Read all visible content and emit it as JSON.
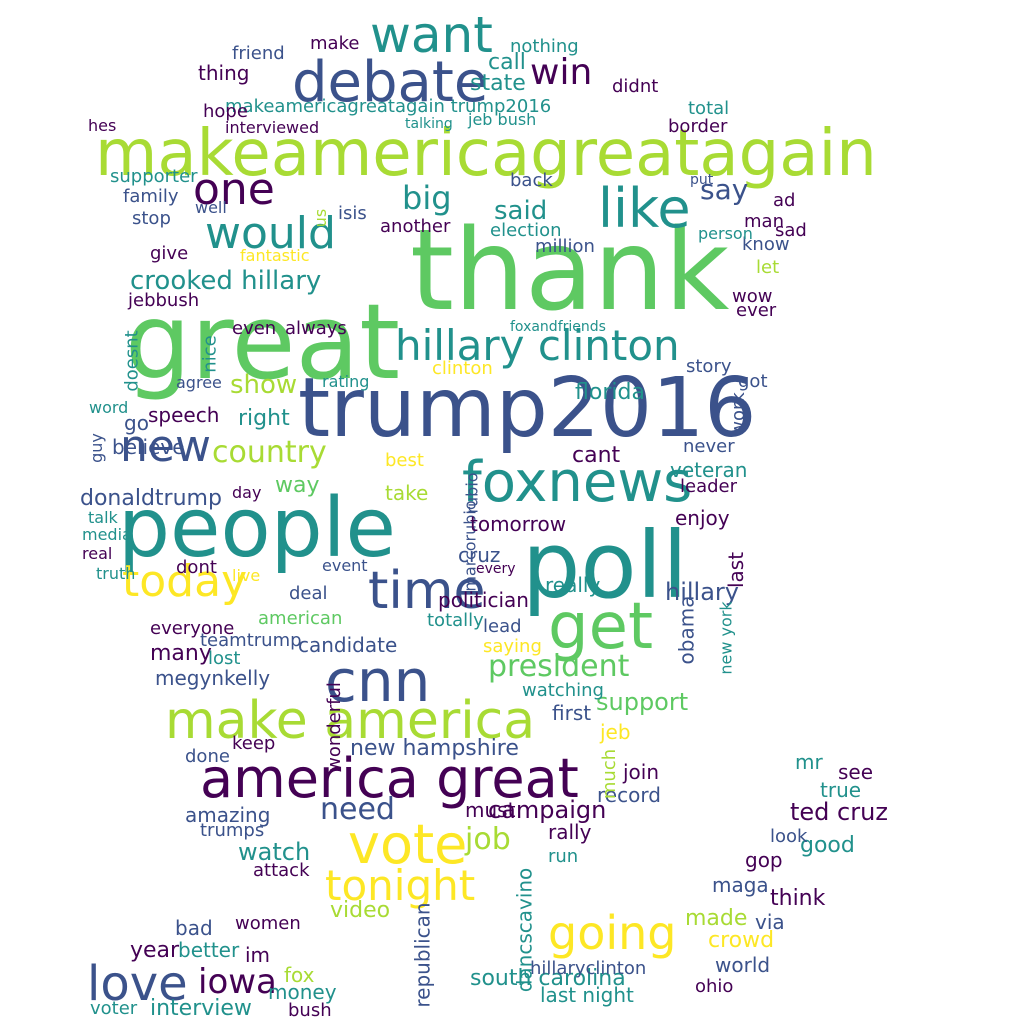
{
  "palette": {
    "dark_purple": "#440154",
    "indigo": "#3b528b",
    "teal": "#21918c",
    "green": "#5ec962",
    "yellow_green": "#a8db34",
    "yellow": "#fde725"
  },
  "words": [
    {
      "text": "thank",
      "color": "#5ec962"
    },
    {
      "text": "great",
      "color": "#5ec962"
    },
    {
      "text": "trump2016",
      "color": "#3b528b"
    },
    {
      "text": "people",
      "color": "#21918c"
    },
    {
      "text": "poll",
      "color": "#21918c"
    },
    {
      "text": "makeamericagreatagain",
      "color": "#a8db34"
    },
    {
      "text": "america great",
      "color": "#440154"
    },
    {
      "text": "make america",
      "color": "#a8db34"
    },
    {
      "text": "debate",
      "color": "#3b528b"
    },
    {
      "text": "foxnews",
      "color": "#21918c"
    },
    {
      "text": "hillary clinton",
      "color": "#21918c"
    },
    {
      "text": "cnn",
      "color": "#3b528b"
    },
    {
      "text": "time",
      "color": "#3b528b"
    },
    {
      "text": "get",
      "color": "#5ec962"
    },
    {
      "text": "vote",
      "color": "#fde725"
    },
    {
      "text": "want",
      "color": "#21918c"
    },
    {
      "text": "one",
      "color": "#440154"
    },
    {
      "text": "like",
      "color": "#21918c"
    },
    {
      "text": "would",
      "color": "#21918c"
    },
    {
      "text": "new",
      "color": "#3b528b"
    },
    {
      "text": "today",
      "color": "#fde725"
    },
    {
      "text": "love",
      "color": "#3b528b"
    },
    {
      "text": "tonight",
      "color": "#fde725"
    },
    {
      "text": "going",
      "color": "#fde725"
    },
    {
      "text": "win",
      "color": "#440154"
    },
    {
      "text": "country",
      "color": "#a8db34"
    },
    {
      "text": "crooked hillary",
      "color": "#21918c"
    },
    {
      "text": "president",
      "color": "#5ec962"
    },
    {
      "text": "iowa",
      "color": "#440154"
    },
    {
      "text": "job",
      "color": "#a8db34"
    },
    {
      "text": "need",
      "color": "#3b528b"
    },
    {
      "text": "big",
      "color": "#21918c"
    },
    {
      "text": "said",
      "color": "#21918c"
    },
    {
      "text": "say",
      "color": "#3b528b"
    },
    {
      "text": "show",
      "color": "#a8db34"
    },
    {
      "text": "makeamericagreatagain trump2016",
      "color": "#21918c"
    },
    {
      "text": "interview",
      "color": "#21918c"
    },
    {
      "text": "campaign",
      "color": "#440154"
    },
    {
      "text": "hillary",
      "color": "#3b528b"
    },
    {
      "text": "ted cruz",
      "color": "#440154"
    },
    {
      "text": "donaldtrump",
      "color": "#3b528b"
    },
    {
      "text": "new hampshire",
      "color": "#3b528b"
    },
    {
      "text": "speech",
      "color": "#440154"
    },
    {
      "text": "south carolina",
      "color": "#21918c"
    },
    {
      "text": "last night",
      "color": "#21918c"
    },
    {
      "text": "hillaryclinton",
      "color": "#3b528b"
    },
    {
      "text": "megynkelly",
      "color": "#3b528b"
    },
    {
      "text": "wonderful",
      "color": "#440154"
    },
    {
      "text": "support",
      "color": "#5ec962"
    },
    {
      "text": "watch",
      "color": "#21918c"
    },
    {
      "text": "florida",
      "color": "#21918c"
    },
    {
      "text": "money",
      "color": "#21918c"
    },
    {
      "text": "dancscavino",
      "color": "#21918c"
    },
    {
      "text": "republican",
      "color": "#3b528b"
    },
    {
      "text": "video",
      "color": "#a8db34"
    },
    {
      "text": "crowd",
      "color": "#fde725"
    },
    {
      "text": "made",
      "color": "#a8db34"
    },
    {
      "text": "world",
      "color": "#3b528b"
    },
    {
      "text": "think",
      "color": "#440154"
    },
    {
      "text": "gop",
      "color": "#440154"
    },
    {
      "text": "good",
      "color": "#21918c"
    },
    {
      "text": "look",
      "color": "#3b528b"
    },
    {
      "text": "year",
      "color": "#440154"
    },
    {
      "text": "bad",
      "color": "#3b528b"
    },
    {
      "text": "better",
      "color": "#21918c"
    },
    {
      "text": "im",
      "color": "#440154"
    },
    {
      "text": "fox",
      "color": "#a8db34"
    },
    {
      "text": "women",
      "color": "#440154"
    },
    {
      "text": "amazing",
      "color": "#3b528b"
    },
    {
      "text": "trumps",
      "color": "#3b528b"
    },
    {
      "text": "keep",
      "color": "#440154"
    },
    {
      "text": "done",
      "color": "#3b528b"
    },
    {
      "text": "attack",
      "color": "#440154"
    },
    {
      "text": "teamtrump",
      "color": "#3b528b"
    },
    {
      "text": "everyone",
      "color": "#440154"
    },
    {
      "text": "many",
      "color": "#440154"
    },
    {
      "text": "lost",
      "color": "#21918c"
    },
    {
      "text": "candidate",
      "color": "#3b528b"
    },
    {
      "text": "american",
      "color": "#5ec962"
    },
    {
      "text": "deal",
      "color": "#3b528b"
    },
    {
      "text": "totally",
      "color": "#21918c"
    },
    {
      "text": "politician",
      "color": "#440154"
    },
    {
      "text": "really",
      "color": "#21918c"
    },
    {
      "text": "cruz",
      "color": "#3b528b"
    },
    {
      "text": "rubio",
      "color": "#3b528b"
    },
    {
      "text": "marcorubio",
      "color": "#3b528b"
    },
    {
      "text": "tomorrow",
      "color": "#440154"
    },
    {
      "text": "believe",
      "color": "#3b528b"
    },
    {
      "text": "right",
      "color": "#21918c"
    },
    {
      "text": "way",
      "color": "#5ec962"
    },
    {
      "text": "take",
      "color": "#a8db34"
    },
    {
      "text": "cant",
      "color": "#440154"
    },
    {
      "text": "veteran",
      "color": "#21918c"
    },
    {
      "text": "leader",
      "color": "#440154"
    },
    {
      "text": "enjoy",
      "color": "#440154"
    },
    {
      "text": "last",
      "color": "#440154"
    },
    {
      "text": "obama",
      "color": "#3b528b"
    },
    {
      "text": "new york",
      "color": "#21918c"
    },
    {
      "text": "join",
      "color": "#440154"
    },
    {
      "text": "record",
      "color": "#3b528b"
    },
    {
      "text": "much",
      "color": "#a8db34"
    },
    {
      "text": "jeb",
      "color": "#fde725"
    },
    {
      "text": "mr",
      "color": "#21918c"
    },
    {
      "text": "see",
      "color": "#440154"
    },
    {
      "text": "true",
      "color": "#21918c"
    },
    {
      "text": "first",
      "color": "#3b528b"
    },
    {
      "text": "watching",
      "color": "#21918c"
    },
    {
      "text": "saying",
      "color": "#fde725"
    },
    {
      "text": "lead",
      "color": "#3b528b"
    },
    {
      "text": "must",
      "color": "#440154"
    },
    {
      "text": "rally",
      "color": "#440154"
    },
    {
      "text": "run",
      "color": "#21918c"
    },
    {
      "text": "maga",
      "color": "#3b528b"
    },
    {
      "text": "via",
      "color": "#3b528b"
    },
    {
      "text": "ohio",
      "color": "#440154"
    },
    {
      "text": "bush",
      "color": "#440154"
    },
    {
      "text": "voter",
      "color": "#21918c"
    },
    {
      "text": "jebbush",
      "color": "#440154"
    },
    {
      "text": "hope",
      "color": "#440154"
    },
    {
      "text": "family",
      "color": "#3b528b"
    },
    {
      "text": "stop",
      "color": "#3b528b"
    },
    {
      "text": "well",
      "color": "#3b528b"
    },
    {
      "text": "give",
      "color": "#440154"
    },
    {
      "text": "thing",
      "color": "#440154"
    },
    {
      "text": "friend",
      "color": "#3b528b"
    },
    {
      "text": "make",
      "color": "#440154"
    },
    {
      "text": "nothing",
      "color": "#21918c"
    },
    {
      "text": "call",
      "color": "#21918c"
    },
    {
      "text": "state",
      "color": "#21918c"
    },
    {
      "text": "didnt",
      "color": "#440154"
    },
    {
      "text": "total",
      "color": "#21918c"
    },
    {
      "text": "border",
      "color": "#440154"
    },
    {
      "text": "interviewed",
      "color": "#440154"
    },
    {
      "text": "jeb bush",
      "color": "#21918c"
    },
    {
      "text": "talking",
      "color": "#21918c"
    },
    {
      "text": "supporter",
      "color": "#21918c"
    },
    {
      "text": "back",
      "color": "#3b528b"
    },
    {
      "text": "isis",
      "color": "#3b528b"
    },
    {
      "text": "us",
      "color": "#a8db34"
    },
    {
      "text": "another",
      "color": "#440154"
    },
    {
      "text": "election",
      "color": "#21918c"
    },
    {
      "text": "million",
      "color": "#3b528b"
    },
    {
      "text": "fantastic",
      "color": "#fde725"
    },
    {
      "text": "always",
      "color": "#440154"
    },
    {
      "text": "even",
      "color": "#440154"
    },
    {
      "text": "nice",
      "color": "#21918c"
    },
    {
      "text": "doesnt",
      "color": "#21918c"
    },
    {
      "text": "agree",
      "color": "#3b528b"
    },
    {
      "text": "rating",
      "color": "#21918c"
    },
    {
      "text": "clinton",
      "color": "#fde725"
    },
    {
      "text": "foxandfriends",
      "color": "#21918c"
    },
    {
      "text": "story",
      "color": "#3b528b"
    },
    {
      "text": "got",
      "color": "#3b528b"
    },
    {
      "text": "wow",
      "color": "#440154"
    },
    {
      "text": "ever",
      "color": "#440154"
    },
    {
      "text": "work",
      "color": "#3b528b"
    },
    {
      "text": "know",
      "color": "#3b528b"
    },
    {
      "text": "let",
      "color": "#a8db34"
    },
    {
      "text": "person",
      "color": "#21918c"
    },
    {
      "text": "man",
      "color": "#440154"
    },
    {
      "text": "sad",
      "color": "#440154"
    },
    {
      "text": "ad",
      "color": "#440154"
    },
    {
      "text": "put",
      "color": "#3b528b"
    },
    {
      "text": "never",
      "color": "#3b528b"
    },
    {
      "text": "best",
      "color": "#fde725"
    },
    {
      "text": "go",
      "color": "#3b528b"
    },
    {
      "text": "word",
      "color": "#21918c"
    },
    {
      "text": "day",
      "color": "#440154"
    },
    {
      "text": "guy",
      "color": "#3b528b"
    },
    {
      "text": "talk",
      "color": "#21918c"
    },
    {
      "text": "media",
      "color": "#21918c"
    },
    {
      "text": "real",
      "color": "#440154"
    },
    {
      "text": "truth",
      "color": "#21918c"
    },
    {
      "text": "dont",
      "color": "#440154"
    },
    {
      "text": "live",
      "color": "#fde725"
    },
    {
      "text": "event",
      "color": "#3b528b"
    },
    {
      "text": "every",
      "color": "#440154"
    },
    {
      "text": "hes",
      "color": "#440154"
    }
  ]
}
